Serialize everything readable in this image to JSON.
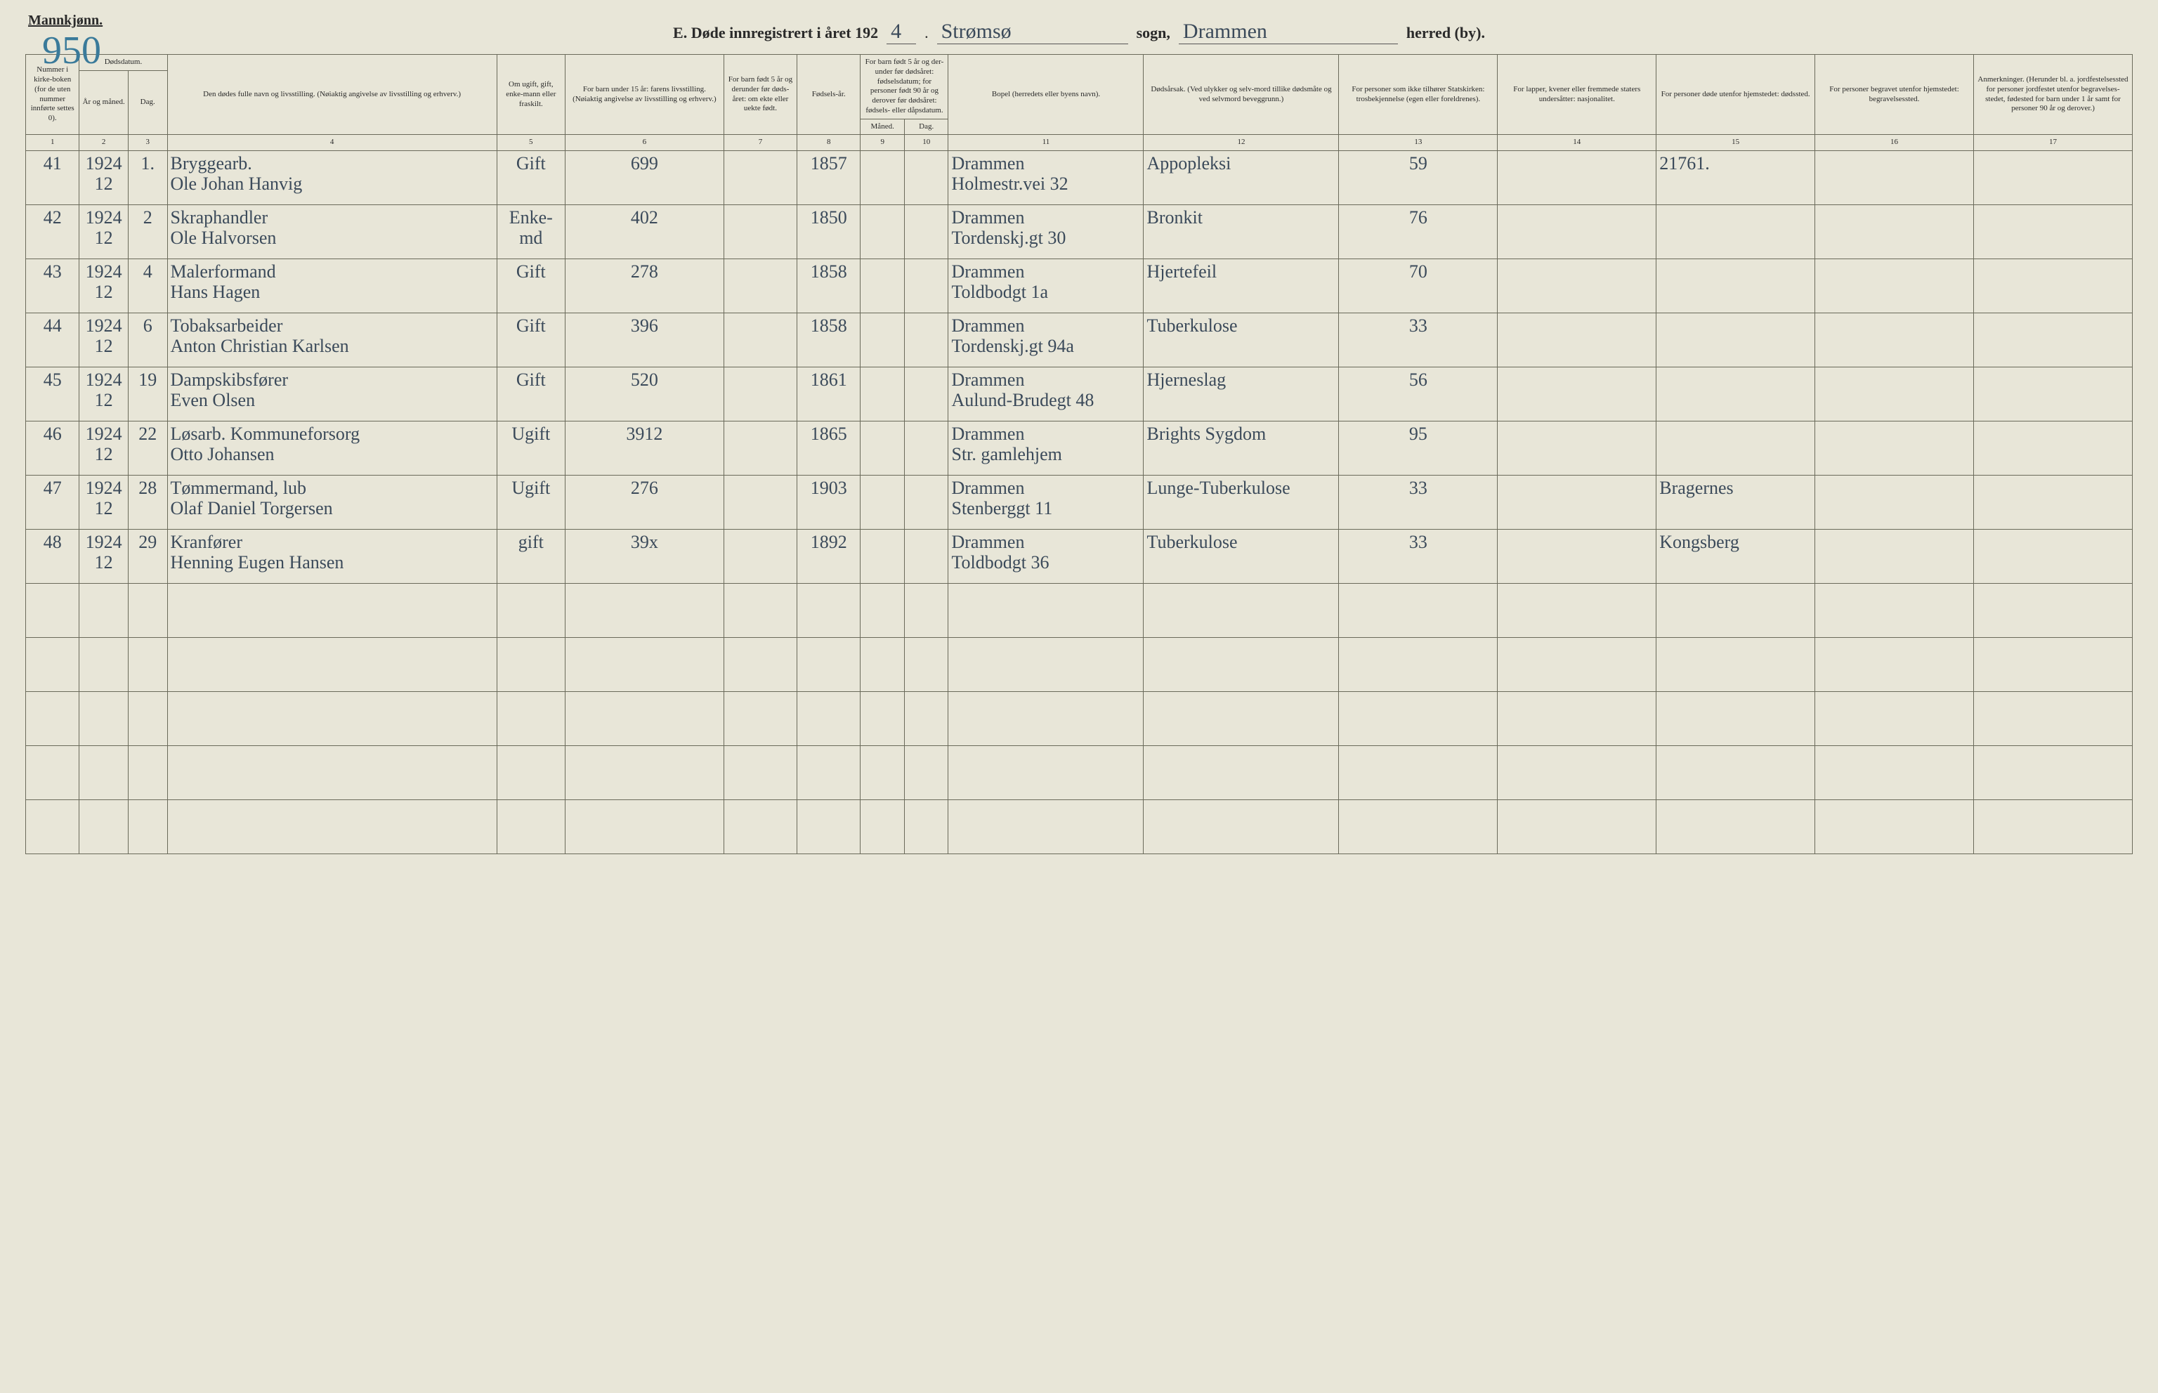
{
  "header": {
    "gender_label": "Mannkjønn.",
    "page_number_hand": "950",
    "title_prefix": "E.  Døde innregistrert i året 192",
    "year_suffix": "4",
    "sogn_value": "Strømsø",
    "sogn_label": "sogn,",
    "herred_value": "Drammen",
    "herred_label": "herred (by)."
  },
  "columns": {
    "c1": "Nummer i kirke-boken (for de uten nummer innførte settes 0).",
    "c2a": "Dødsdatum.",
    "c2b": "År og måned.",
    "c3": "Dag.",
    "c4": "Den dødes fulle navn og livsstilling. (Nøiaktig angivelse av livsstilling og erhverv.)",
    "c5": "Om ugift, gift, enke-mann eller fraskilt.",
    "c6": "For barn under 15 år: farens livsstilling. (Nøiaktig angivelse av livsstilling og erhverv.)",
    "c7": "For barn født 5 år og derunder før døds-året: om ekte eller uekte født.",
    "c8": "Fødsels-år.",
    "c9_10_top": "For barn født 5 år og der-under før dødsåret: fødselsdatum; for personer født 90 år og derover før dødsåret: fødsels- eller dåpsdatum.",
    "c9": "Måned.",
    "c10": "Dag.",
    "c11": "Bopel (herredets eller byens navn).",
    "c12": "Dødsårsak. (Ved ulykker og selv-mord tillike dødsmåte og ved selvmord beveggrunn.)",
    "c13": "For personer som ikke tilhører Statskirken: trosbekjennelse (egen eller foreldrenes).",
    "c14": "For lapper, kvener eller fremmede staters undersåtter: nasjonalitet.",
    "c15": "For personer døde utenfor hjemstedet: dødssted.",
    "c16": "For personer begravet utenfor hjemstedet: begravelsessted.",
    "c17": "Anmerkninger. (Herunder bl. a. jordfestelsessted for personer jordfestet utenfor begravelses-stedet, fødested for barn under 1 år samt for personer 90 år og derover.)"
  },
  "colnums": [
    "1",
    "2",
    "3",
    "4",
    "5",
    "6",
    "7",
    "8",
    "9",
    "10",
    "11",
    "12",
    "13",
    "14",
    "15",
    "16",
    "17"
  ],
  "rows": [
    {
      "num": "41",
      "year_month": "1924\n12",
      "day": "1.",
      "name": "Bryggearb.\nOle Johan Hanvig",
      "status": "Gift",
      "c6": "699",
      "c7": "",
      "birth": "1857",
      "c9": "",
      "c10": "",
      "residence": "Drammen\nHolmestr.vei 32",
      "cause": "Appopleksi",
      "c13": "59",
      "c14": "",
      "c15": "21761.",
      "c16": "",
      "c17": ""
    },
    {
      "num": "42",
      "year_month": "1924\n12",
      "day": "2",
      "name": "Skraphandler\nOle Halvorsen",
      "status": "Enke-md",
      "c6": "402",
      "c7": "",
      "birth": "1850",
      "c9": "",
      "c10": "",
      "residence": "Drammen\nTordenskj.gt 30",
      "cause": "Bronkit",
      "c13": "76",
      "c14": "",
      "c15": "",
      "c16": "",
      "c17": ""
    },
    {
      "num": "43",
      "year_month": "1924\n12",
      "day": "4",
      "name": "Malerformand\nHans Hagen",
      "status": "Gift",
      "c6": "278",
      "c7": "",
      "birth": "1858",
      "c9": "",
      "c10": "",
      "residence": "Drammen\nToldbodgt 1a",
      "cause": "Hjertefeil",
      "c13": "70",
      "c14": "",
      "c15": "",
      "c16": "",
      "c17": ""
    },
    {
      "num": "44",
      "year_month": "1924\n12",
      "day": "6",
      "name": "Tobaksarbeider\nAnton Christian Karlsen",
      "status": "Gift",
      "c6": "396",
      "c7": "",
      "birth": "1858",
      "c9": "",
      "c10": "",
      "residence": "Drammen\nTordenskj.gt 94a",
      "cause": "Tuberkulose",
      "c13": "33",
      "c14": "",
      "c15": "",
      "c16": "",
      "c17": ""
    },
    {
      "num": "45",
      "year_month": "1924\n12",
      "day": "19",
      "name": "Dampskibsfører\nEven Olsen",
      "status": "Gift",
      "c6": "520",
      "c7": "",
      "birth": "1861",
      "c9": "",
      "c10": "",
      "residence": "Drammen\nAulund-Brudegt 48",
      "cause": "Hjerneslag",
      "c13": "56",
      "c14": "",
      "c15": "",
      "c16": "",
      "c17": ""
    },
    {
      "num": "46",
      "year_month": "1924\n12",
      "day": "22",
      "name": "Løsarb. Kommuneforsorg\nOtto Johansen",
      "status": "Ugift",
      "c6": "3912",
      "c7": "",
      "birth": "1865",
      "c9": "",
      "c10": "",
      "residence": "Drammen\nStr. gamlehjem",
      "cause": "Brights Sygdom",
      "c13": "95",
      "c14": "",
      "c15": "",
      "c16": "",
      "c17": ""
    },
    {
      "num": "47",
      "year_month": "1924\n12",
      "day": "28",
      "name": "Tømmermand, lub\nOlaf Daniel Torgersen",
      "status": "Ugift",
      "c6": "276",
      "c7": "",
      "birth": "1903",
      "c9": "",
      "c10": "",
      "residence": "Drammen\nStenberggt 11",
      "cause": "Lunge-Tuberkulose",
      "c13": "33",
      "c14": "",
      "c15": "Bragernes",
      "c16": "",
      "c17": ""
    },
    {
      "num": "48",
      "year_month": "1924\n12",
      "day": "29",
      "name": "Kranfører\nHenning Eugen Hansen",
      "status": "gift",
      "c6": "39x",
      "c7": "",
      "birth": "1892",
      "c9": "",
      "c10": "",
      "residence": "Drammen\nToldbodgt 36",
      "cause": "Tuberkulose",
      "c13": "33",
      "c14": "",
      "c15": "Kongsberg",
      "c16": "",
      "c17": ""
    }
  ],
  "empty_row_count": 5,
  "style": {
    "background": "#e8e6d8",
    "border_color": "#6a6a5a",
    "handwriting_color": "#3b4a5a",
    "print_color": "#2a2a2a",
    "page_number_color": "#3a7a9a"
  }
}
